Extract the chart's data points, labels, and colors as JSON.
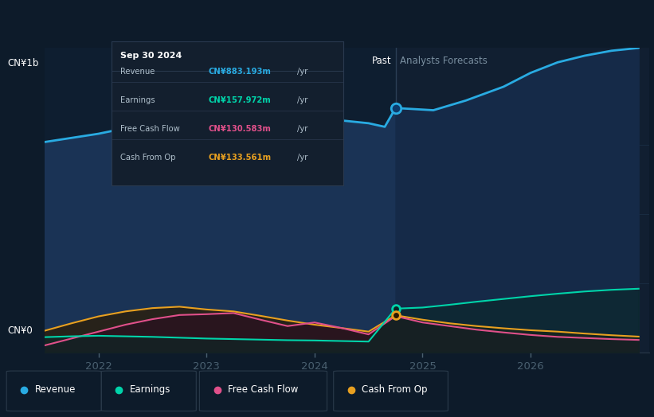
{
  "bg_color": "#0d1b2a",
  "plot_bg_color": "#0d1b2a",
  "ylabel_top": "CN¥1b",
  "ylabel_bottom": "CN¥0",
  "past_label": "Past",
  "forecast_label": "Analysts Forecasts",
  "divider_x": 2024.75,
  "xlim": [
    2021.5,
    2027.1
  ],
  "ylim": [
    0,
    1100
  ],
  "x_ticks": [
    2022,
    2023,
    2024,
    2025,
    2026
  ],
  "revenue": {
    "x": [
      2021.5,
      2021.75,
      2022.0,
      2022.25,
      2022.5,
      2022.75,
      2023.0,
      2023.25,
      2023.5,
      2023.75,
      2024.0,
      2024.25,
      2024.5,
      2024.65,
      2024.75,
      2025.1,
      2025.4,
      2025.75,
      2026.0,
      2026.25,
      2026.5,
      2026.75,
      2027.0
    ],
    "y": [
      760,
      775,
      790,
      810,
      830,
      840,
      845,
      855,
      865,
      858,
      845,
      838,
      828,
      815,
      883,
      875,
      910,
      960,
      1010,
      1048,
      1072,
      1090,
      1100
    ],
    "color": "#29abe2",
    "fill_color_past": "#1a3355",
    "fill_color_future": "#152a48",
    "lw": 2.0
  },
  "earnings": {
    "x": [
      2021.5,
      2021.75,
      2022.0,
      2022.25,
      2022.5,
      2022.75,
      2023.0,
      2023.25,
      2023.5,
      2023.75,
      2024.0,
      2024.25,
      2024.5,
      2024.75,
      2025.0,
      2025.25,
      2025.5,
      2025.75,
      2026.0,
      2026.25,
      2026.5,
      2026.75,
      2027.0
    ],
    "y": [
      55,
      58,
      60,
      58,
      56,
      53,
      50,
      48,
      46,
      44,
      43,
      41,
      39,
      158,
      162,
      172,
      183,
      193,
      203,
      212,
      220,
      226,
      230
    ],
    "color": "#00d4aa",
    "lw": 1.5
  },
  "fcf": {
    "x": [
      2021.5,
      2021.75,
      2022.0,
      2022.25,
      2022.5,
      2022.75,
      2023.0,
      2023.25,
      2023.5,
      2023.75,
      2024.0,
      2024.25,
      2024.5,
      2024.75,
      2025.0,
      2025.25,
      2025.5,
      2025.75,
      2026.0,
      2026.25,
      2026.5,
      2026.75,
      2027.0
    ],
    "y": [
      25,
      50,
      75,
      100,
      120,
      135,
      138,
      142,
      118,
      95,
      108,
      88,
      65,
      131,
      108,
      95,
      82,
      72,
      63,
      56,
      52,
      48,
      45
    ],
    "color": "#e0508a",
    "lw": 1.5
  },
  "cashfromop": {
    "x": [
      2021.5,
      2021.75,
      2022.0,
      2022.25,
      2022.5,
      2022.75,
      2023.0,
      2023.25,
      2023.5,
      2023.75,
      2024.0,
      2024.25,
      2024.5,
      2024.75,
      2025.0,
      2025.25,
      2025.5,
      2025.75,
      2026.0,
      2026.25,
      2026.5,
      2026.75,
      2027.0
    ],
    "y": [
      78,
      105,
      130,
      148,
      160,
      165,
      155,
      148,
      132,
      115,
      100,
      88,
      75,
      134,
      118,
      105,
      95,
      87,
      80,
      75,
      68,
      62,
      57
    ],
    "color": "#e8a020",
    "lw": 1.5
  },
  "tooltip": {
    "date": "Sep 30 2024",
    "items": [
      {
        "label": "Revenue",
        "value": "CN¥883.193m",
        "color": "#29abe2"
      },
      {
        "label": "Earnings",
        "value": "CN¥157.972m",
        "color": "#00d4aa"
      },
      {
        "label": "Free Cash Flow",
        "value": "CN¥130.583m",
        "color": "#e0508a"
      },
      {
        "label": "Cash From Op",
        "value": "CN¥133.561m",
        "color": "#e8a020"
      }
    ]
  },
  "legend": [
    {
      "label": "Revenue",
      "color": "#29abe2"
    },
    {
      "label": "Earnings",
      "color": "#00d4aa"
    },
    {
      "label": "Free Cash Flow",
      "color": "#e0508a"
    },
    {
      "label": "Cash From Op",
      "color": "#e8a020"
    }
  ]
}
